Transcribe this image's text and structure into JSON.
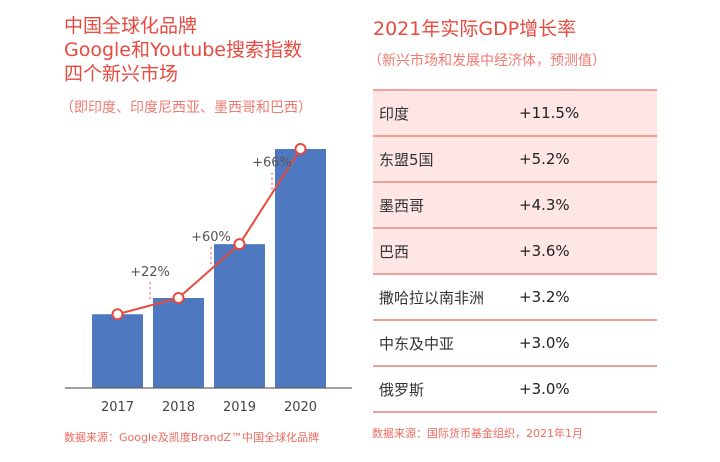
{
  "left": {
    "title_lines": [
      "中国全球化品牌",
      "Google和Youtube搜索指数",
      "四个新兴市场"
    ],
    "subtitle": "（即印度、印度尼西亚、墨西哥和巴西）",
    "source": "数据来源：Google及凯度BrandZ™中国全球化品牌"
  },
  "chart_data": {
    "type": "bar",
    "categories": [
      "2017",
      "2018",
      "2019",
      "2020"
    ],
    "values": [
      100,
      122,
      195,
      324
    ],
    "growth_labels": [
      "+22%",
      "+60%",
      "+66%"
    ],
    "title": "",
    "xlabel": "",
    "ylabel": "",
    "grid": false,
    "bar_color": "#4e78c0",
    "line_color": "#e84a40"
  },
  "right": {
    "title": "2021年实际GDP增长率",
    "subtitle": "（新兴市场和发展中经济体，预测值）",
    "rows": [
      {
        "name": "印度",
        "value": "+11.5%"
      },
      {
        "name": "东盟5国",
        "value": "+5.2%"
      },
      {
        "name": "墨西哥",
        "value": "+4.3%"
      },
      {
        "name": "巴西",
        "value": "+3.6%"
      },
      {
        "name": "撒哈拉以南非洲",
        "value": "+3.2%"
      },
      {
        "name": "中东及中亚",
        "value": "+3.0%"
      },
      {
        "name": "俄罗斯",
        "value": "+3.0%"
      }
    ],
    "source": "数据来源：国际货币基金组织，2021年1月",
    "colors": {
      "pink_row": "#fde6e4",
      "border": "#f0a09a"
    }
  }
}
